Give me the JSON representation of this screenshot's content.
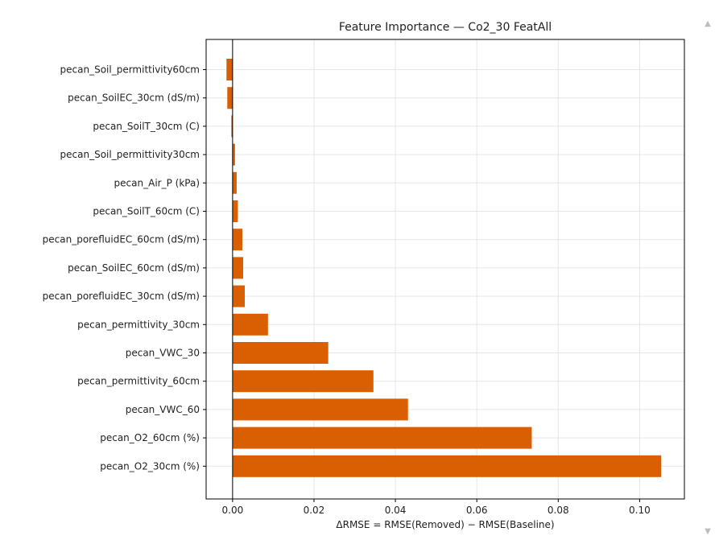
{
  "chart_data": {
    "type": "bar",
    "orientation": "horizontal",
    "title": "Feature Importance — Co2_30 FeatAll",
    "xlabel": "ΔRMSE = RMSE(Removed) − RMSE(Baseline)",
    "ylabel": "",
    "xlim": [
      -0.0065,
      0.111
    ],
    "x_ticks": [
      0.0,
      0.02,
      0.04,
      0.06,
      0.08,
      0.1
    ],
    "x_tick_labels": [
      "0.00",
      "0.02",
      "0.04",
      "0.06",
      "0.08",
      "0.10"
    ],
    "grid": true,
    "bar_color": "#d95f02",
    "zero_line": true,
    "categories": [
      "pecan_Soil_permittivity60cm",
      "pecan_SoilEC_30cm (dS/m)",
      "pecan_SoilT_30cm (C)",
      "pecan_Soil_permittivity30cm",
      "pecan_Air_P (kPa)",
      "pecan_SoilT_60cm (C)",
      "pecan_porefluidEC_60cm (dS/m)",
      "pecan_SoilEC_60cm (dS/m)",
      "pecan_porefluidEC_30cm (dS/m)",
      "pecan_permittivity_30cm",
      "pecan_VWC_30",
      "pecan_permittivity_60cm",
      "pecan_VWC_60",
      "pecan_O2_60cm (%)",
      "pecan_O2_30cm (%)"
    ],
    "values": [
      -0.0015,
      -0.0013,
      -0.0003,
      0.0006,
      0.001,
      0.0013,
      0.0024,
      0.0026,
      0.003,
      0.0087,
      0.0235,
      0.0346,
      0.0431,
      0.0735,
      0.1053
    ]
  },
  "scrollbar": {
    "up_icon": "triangle-up-icon",
    "down_icon": "triangle-down-icon",
    "up_glyph": "▲",
    "down_glyph": "▼"
  }
}
